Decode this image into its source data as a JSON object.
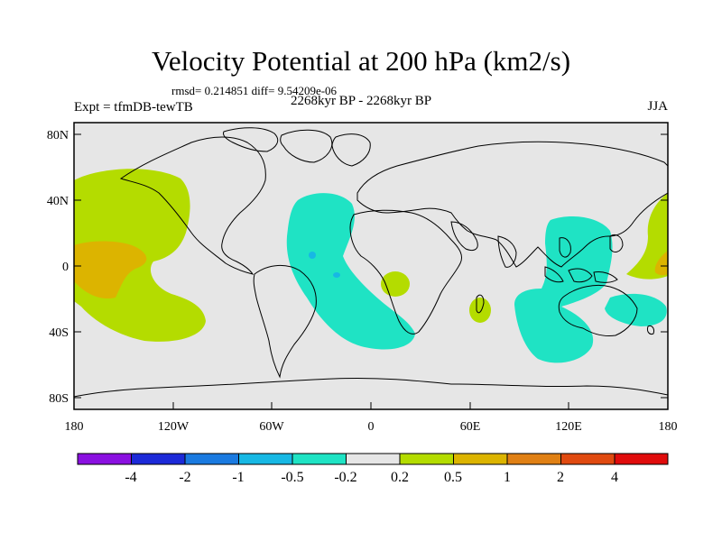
{
  "title": "Velocity Potential at 200 hPa (km2/s)",
  "stats_text": "rmsd= 0.214851 diff= 9.54209e-06",
  "left_label": "Expt = tfmDB-tewTB",
  "center_label": "2268kyr BP - 2268kyr BP",
  "right_label": "JJA",
  "lat_labels": [
    "80N",
    "40N",
    "0",
    "40S",
    "80S"
  ],
  "lon_labels": [
    "180",
    "120W",
    "60W",
    "0",
    "60E",
    "120E",
    "180"
  ],
  "colorbar": {
    "labels": [
      "-4",
      "-2",
      "-1",
      "-0.5",
      "-0.2",
      "0.2",
      "0.5",
      "1",
      "2",
      "4"
    ],
    "colors": [
      "#8a10e0",
      "#1c2ad8",
      "#1a7ae0",
      "#17b8e4",
      "#1fe3c4",
      "#e6e6e6",
      "#b4dc00",
      "#dcb400",
      "#e08014",
      "#e04a10",
      "#e00c0c"
    ]
  },
  "colors": {
    "ocean_bg": "#e6e6e6",
    "negative_small": "#1fe3c4",
    "negative_mid": "#17b8e4",
    "positive_small": "#b4dc00",
    "positive_mid": "#dcb400",
    "positive_large": "#e08014"
  }
}
